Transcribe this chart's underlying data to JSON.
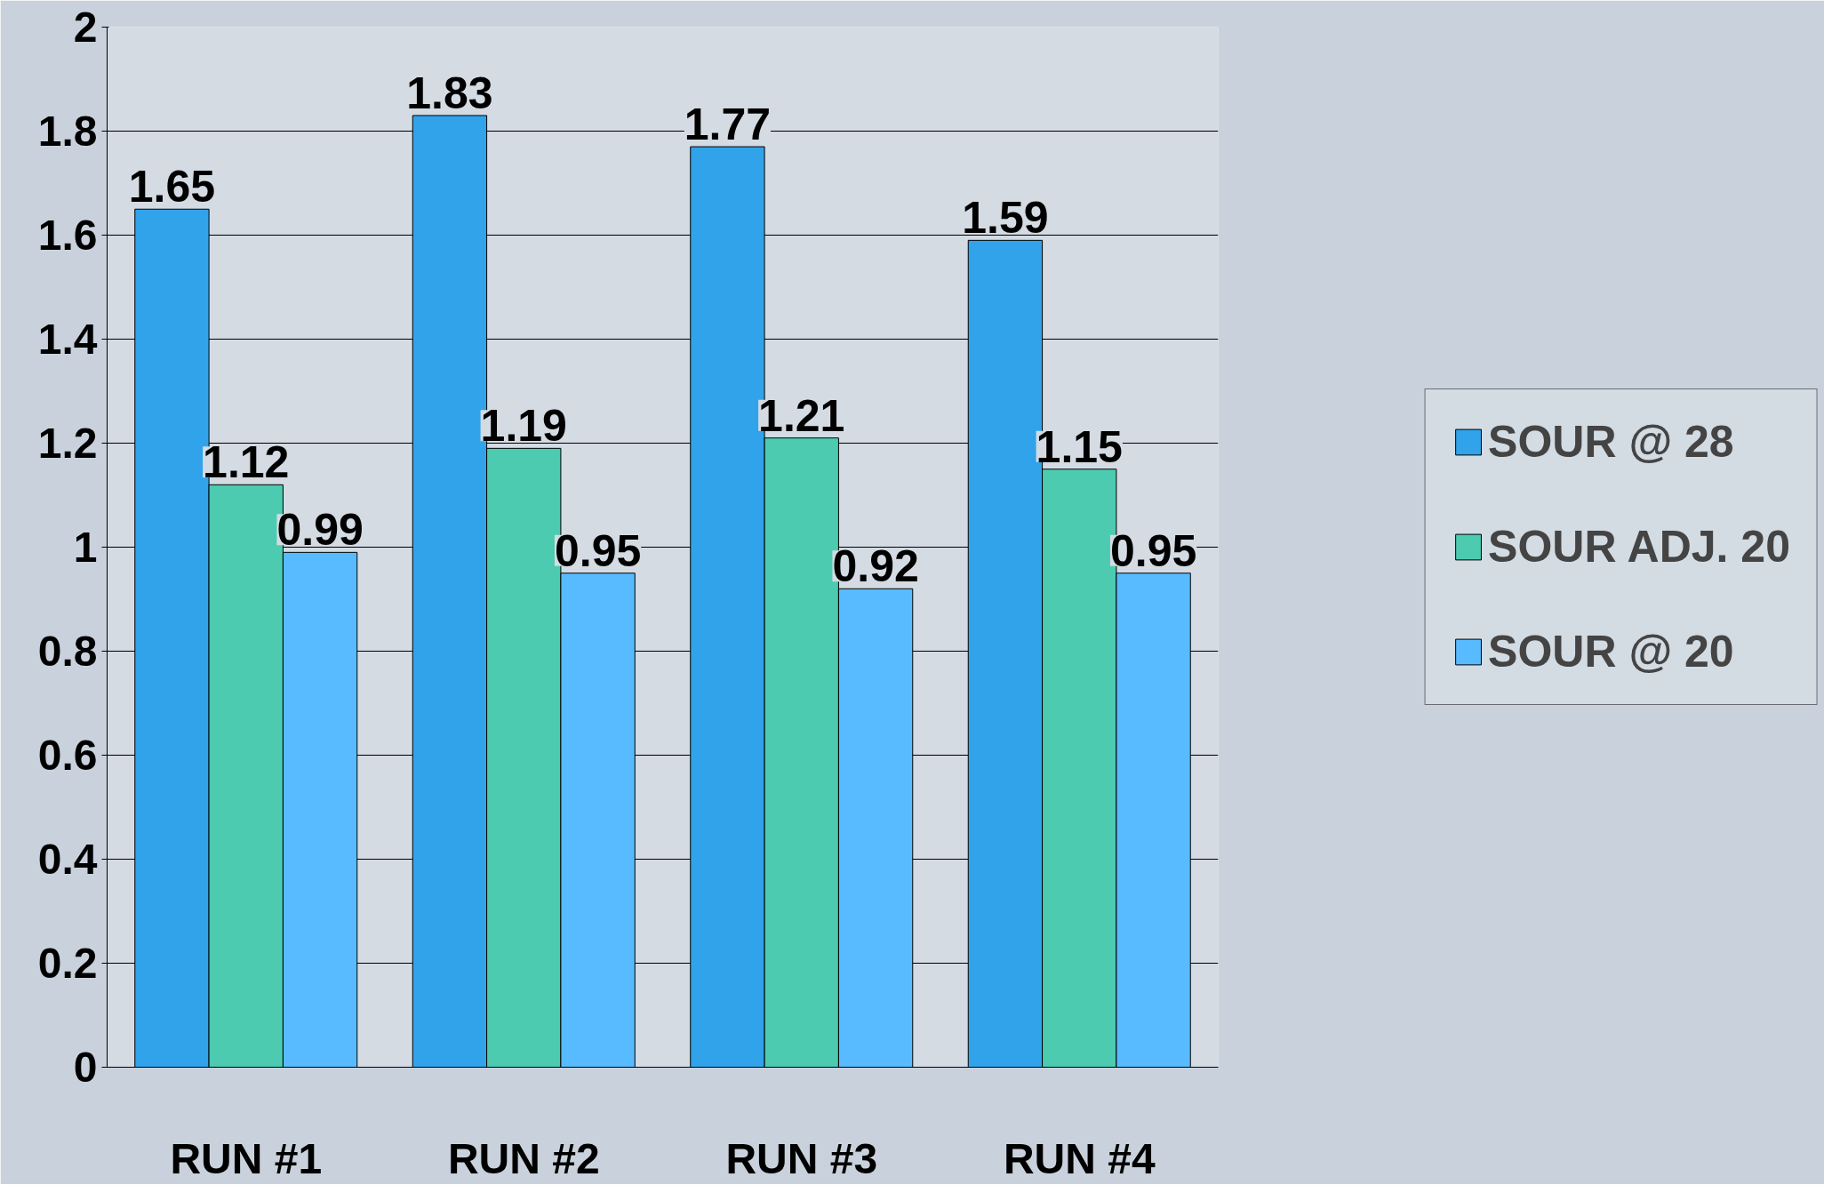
{
  "chart_data": {
    "type": "bar",
    "categories": [
      "RUN #1",
      "RUN #2",
      "RUN #3",
      "RUN #4"
    ],
    "series": [
      {
        "name": "SOUR @ 28",
        "color": "#31a3ea",
        "values": [
          1.65,
          1.83,
          1.77,
          1.59
        ]
      },
      {
        "name": "SOUR ADJ. 20",
        "color": "#4ccbb0",
        "values": [
          1.12,
          1.19,
          1.21,
          1.15
        ]
      },
      {
        "name": "SOUR @ 20",
        "color": "#59bbff",
        "values": [
          0.99,
          0.95,
          0.92,
          0.95
        ]
      }
    ],
    "ylim": [
      0,
      2
    ],
    "yticks": [
      0,
      0.2,
      0.4,
      0.6,
      0.8,
      1,
      1.2,
      1.4,
      1.6,
      1.8,
      2
    ],
    "grid": "y",
    "legend": "right",
    "data_labels": true
  }
}
